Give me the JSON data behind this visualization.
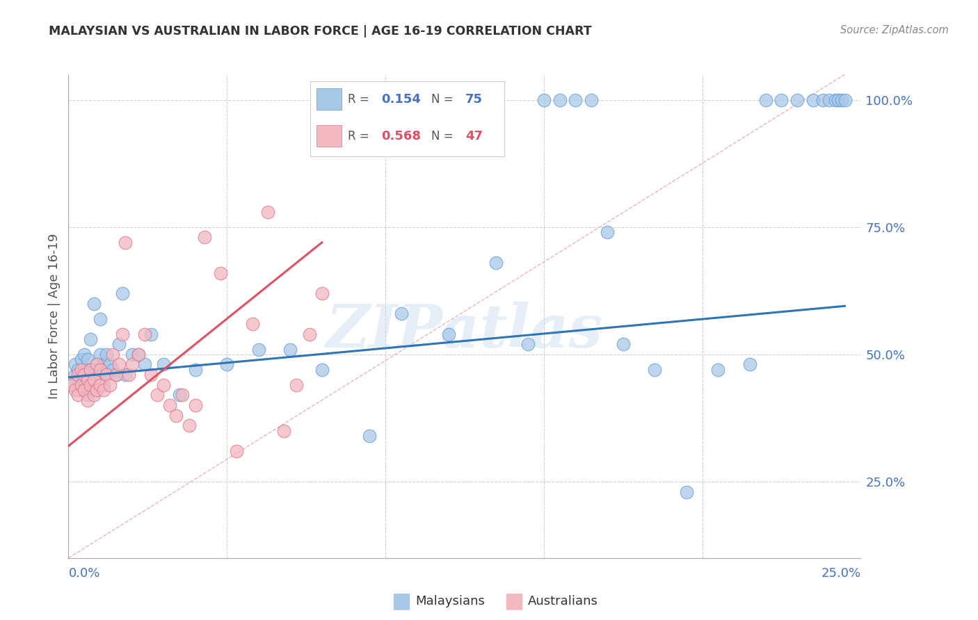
{
  "title": "MALAYSIAN VS AUSTRALIAN IN LABOR FORCE | AGE 16-19 CORRELATION CHART",
  "source": "Source: ZipAtlas.com",
  "ylabel": "In Labor Force | Age 16-19",
  "xmin": 0.0,
  "xmax": 0.25,
  "ymin": 0.1,
  "ymax": 1.05,
  "blue_R": 0.154,
  "blue_N": 75,
  "pink_R": 0.568,
  "pink_N": 47,
  "blue_color": "#a8c8e8",
  "blue_edge_color": "#5b9bd5",
  "pink_color": "#f4b8c1",
  "pink_edge_color": "#e07080",
  "blue_line_color": "#2e75b6",
  "pink_line_color": "#e05060",
  "diag_line_color": "#e8a0a8",
  "watermark": "ZIPatlas",
  "grid_color": "#d0d0d0",
  "right_tick_color": "#4472c4",
  "title_color": "#333333",
  "source_color": "#888888",
  "ylabel_color": "#555555",
  "xlabel_color": "#4472c4",
  "legend_text_color": "#333333",
  "legend_val_color_blue": "#4472c4",
  "legend_val_color_pink": "#e05060",
  "malaysian_x": [
    0.001,
    0.002,
    0.002,
    0.003,
    0.003,
    0.003,
    0.004,
    0.004,
    0.004,
    0.005,
    0.005,
    0.005,
    0.005,
    0.006,
    0.006,
    0.006,
    0.006,
    0.007,
    0.007,
    0.007,
    0.007,
    0.008,
    0.008,
    0.008,
    0.009,
    0.009,
    0.01,
    0.01,
    0.01,
    0.011,
    0.011,
    0.012,
    0.012,
    0.013,
    0.014,
    0.015,
    0.016,
    0.017,
    0.018,
    0.02,
    0.022,
    0.024,
    0.026,
    0.03,
    0.035,
    0.04,
    0.05,
    0.06,
    0.07,
    0.08,
    0.095,
    0.105,
    0.12,
    0.135,
    0.145,
    0.15,
    0.155,
    0.16,
    0.165,
    0.17,
    0.175,
    0.185,
    0.195,
    0.205,
    0.215,
    0.22,
    0.225,
    0.23,
    0.235,
    0.238,
    0.24,
    0.242,
    0.243,
    0.244,
    0.245
  ],
  "malaysian_y": [
    0.44,
    0.46,
    0.48,
    0.43,
    0.45,
    0.47,
    0.44,
    0.46,
    0.49,
    0.43,
    0.45,
    0.47,
    0.5,
    0.42,
    0.44,
    0.47,
    0.49,
    0.43,
    0.45,
    0.47,
    0.53,
    0.44,
    0.47,
    0.6,
    0.43,
    0.48,
    0.46,
    0.5,
    0.57,
    0.44,
    0.48,
    0.46,
    0.5,
    0.48,
    0.47,
    0.46,
    0.52,
    0.62,
    0.46,
    0.5,
    0.5,
    0.48,
    0.54,
    0.48,
    0.42,
    0.47,
    0.48,
    0.51,
    0.51,
    0.47,
    0.34,
    0.58,
    0.54,
    0.68,
    0.52,
    1.0,
    1.0,
    1.0,
    1.0,
    0.74,
    0.52,
    0.47,
    0.23,
    0.47,
    0.48,
    1.0,
    1.0,
    1.0,
    1.0,
    1.0,
    1.0,
    1.0,
    1.0,
    1.0,
    1.0
  ],
  "australian_x": [
    0.001,
    0.002,
    0.003,
    0.003,
    0.004,
    0.004,
    0.005,
    0.005,
    0.006,
    0.006,
    0.007,
    0.007,
    0.008,
    0.008,
    0.009,
    0.009,
    0.01,
    0.01,
    0.011,
    0.012,
    0.013,
    0.014,
    0.015,
    0.016,
    0.017,
    0.018,
    0.019,
    0.02,
    0.022,
    0.024,
    0.026,
    0.028,
    0.03,
    0.032,
    0.034,
    0.036,
    0.038,
    0.04,
    0.043,
    0.048,
    0.053,
    0.058,
    0.063,
    0.068,
    0.072,
    0.076,
    0.08
  ],
  "australian_y": [
    0.44,
    0.43,
    0.42,
    0.46,
    0.44,
    0.47,
    0.43,
    0.46,
    0.41,
    0.45,
    0.44,
    0.47,
    0.42,
    0.45,
    0.43,
    0.48,
    0.44,
    0.47,
    0.43,
    0.46,
    0.44,
    0.5,
    0.46,
    0.48,
    0.54,
    0.72,
    0.46,
    0.48,
    0.5,
    0.54,
    0.46,
    0.42,
    0.44,
    0.4,
    0.38,
    0.42,
    0.36,
    0.4,
    0.73,
    0.66,
    0.31,
    0.56,
    0.78,
    0.35,
    0.44,
    0.54,
    0.62
  ],
  "blue_line_x": [
    0.0,
    0.245
  ],
  "blue_line_y": [
    0.455,
    0.595
  ],
  "pink_line_x": [
    0.0,
    0.08
  ],
  "pink_line_y": [
    0.32,
    0.72
  ],
  "diag_line_x": [
    0.0,
    0.245
  ],
  "diag_line_y": [
    0.1,
    1.05
  ]
}
